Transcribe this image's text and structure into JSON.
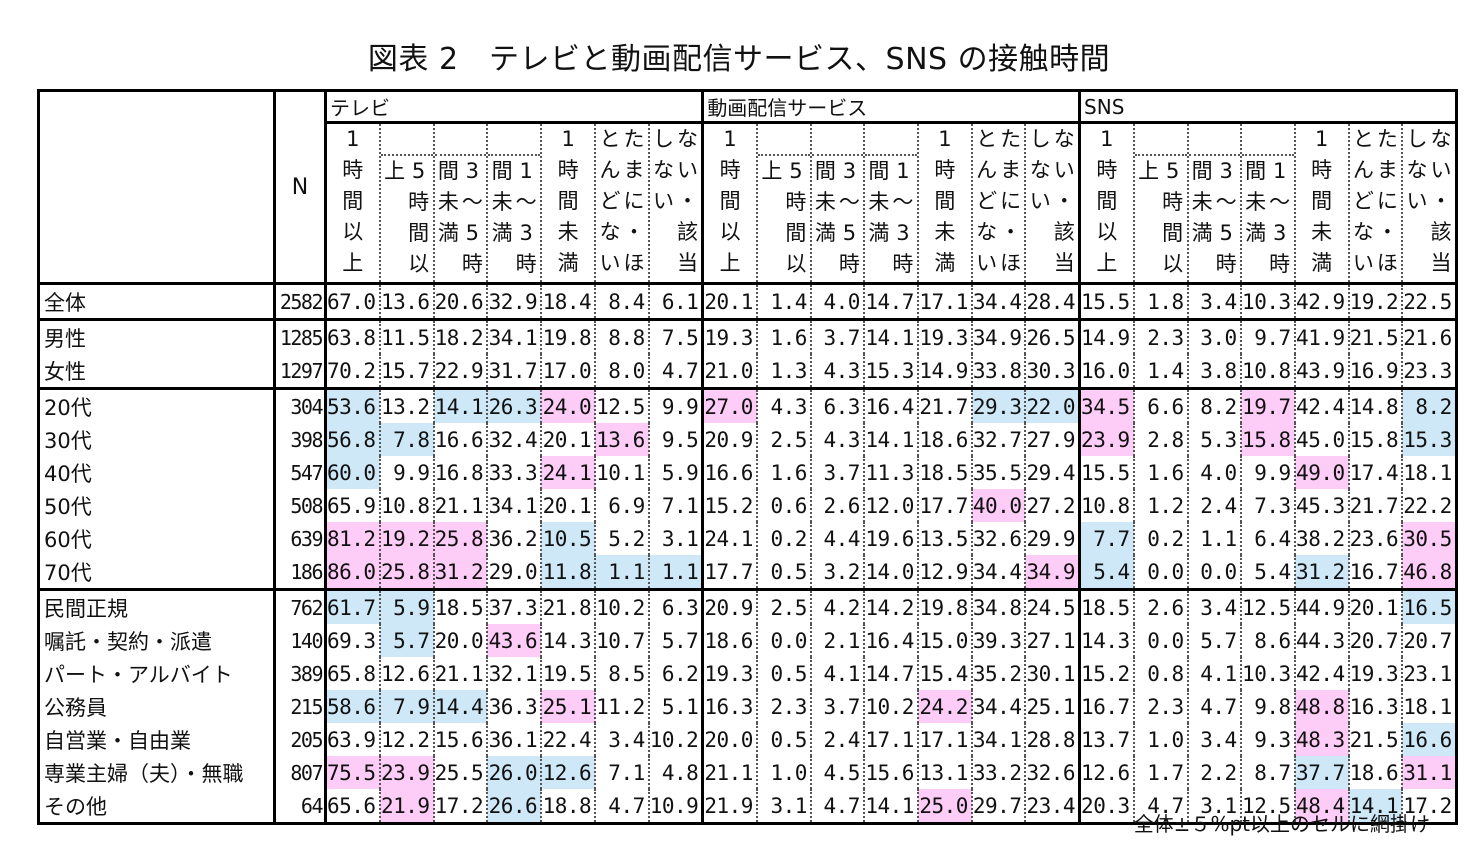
{
  "title": "図表 2　テレビと動画配信サービス、SNS の接触時間",
  "table": {
    "n_header": "N",
    "groups": [
      {
        "name": "テレビ"
      },
      {
        "name": "動画配信サービス"
      },
      {
        "name": "SNS"
      }
    ],
    "subcolumns": [
      {
        "key": "over1h",
        "label": "1時間以上"
      },
      {
        "key": "over5h",
        "label": "5時間以上"
      },
      {
        "key": "3to5h",
        "label": "3～5時間未満"
      },
      {
        "key": "1to3h",
        "label": "1～3時間未満"
      },
      {
        "key": "under1h",
        "label": "1時間未満"
      },
      {
        "key": "rarely",
        "label": "たまに・ほとんどない"
      },
      {
        "key": "none",
        "label": "しない・該当ない"
      }
    ],
    "highlight_colors": {
      "above": "#fdccf7",
      "below": "#cfe8f8"
    },
    "rows": [
      {
        "label": "全体",
        "n": "2582",
        "group": 0,
        "values": [
          "67.0",
          "13.6",
          "20.6",
          "32.9",
          "18.4",
          "8.4",
          "6.1",
          "20.1",
          "1.4",
          "4.0",
          "14.7",
          "17.1",
          "34.4",
          "28.4",
          "15.5",
          "1.8",
          "3.4",
          "10.3",
          "42.9",
          "19.2",
          "22.5"
        ],
        "hl": [
          "",
          "",
          "",
          "",
          "",
          "",
          "",
          "",
          "",
          "",
          "",
          "",
          "",
          "",
          "",
          "",
          "",
          "",
          "",
          "",
          ""
        ]
      },
      {
        "label": "男性",
        "n": "1285",
        "group": 1,
        "values": [
          "63.8",
          "11.5",
          "18.2",
          "34.1",
          "19.8",
          "8.8",
          "7.5",
          "19.3",
          "1.6",
          "3.7",
          "14.1",
          "19.3",
          "34.9",
          "26.5",
          "14.9",
          "2.3",
          "3.0",
          "9.7",
          "41.9",
          "21.5",
          "21.6"
        ],
        "hl": [
          "",
          "",
          "",
          "",
          "",
          "",
          "",
          "",
          "",
          "",
          "",
          "",
          "",
          "",
          "",
          "",
          "",
          "",
          "",
          "",
          ""
        ]
      },
      {
        "label": "女性",
        "n": "1297",
        "group": 1,
        "values": [
          "70.2",
          "15.7",
          "22.9",
          "31.7",
          "17.0",
          "8.0",
          "4.7",
          "21.0",
          "1.3",
          "4.3",
          "15.3",
          "14.9",
          "33.8",
          "30.3",
          "16.0",
          "1.4",
          "3.8",
          "10.8",
          "43.9",
          "16.9",
          "23.3"
        ],
        "hl": [
          "",
          "",
          "",
          "",
          "",
          "",
          "",
          "",
          "",
          "",
          "",
          "",
          "",
          "",
          "",
          "",
          "",
          "",
          "",
          "",
          ""
        ]
      },
      {
        "label": "20代",
        "n": "304",
        "group": 2,
        "values": [
          "53.6",
          "13.2",
          "14.1",
          "26.3",
          "24.0",
          "12.5",
          "9.9",
          "27.0",
          "4.3",
          "6.3",
          "16.4",
          "21.7",
          "29.3",
          "22.0",
          "34.5",
          "6.6",
          "8.2",
          "19.7",
          "42.4",
          "14.8",
          "8.2"
        ],
        "hl": [
          "b",
          "",
          "b",
          "b",
          "p",
          "",
          "",
          "p",
          "",
          "",
          "",
          "",
          "b",
          "b",
          "p",
          "",
          "",
          "p",
          "",
          "",
          "b"
        ]
      },
      {
        "label": "30代",
        "n": "398",
        "group": 2,
        "values": [
          "56.8",
          "7.8",
          "16.6",
          "32.4",
          "20.1",
          "13.6",
          "9.5",
          "20.9",
          "2.5",
          "4.3",
          "14.1",
          "18.6",
          "32.7",
          "27.9",
          "23.9",
          "2.8",
          "5.3",
          "15.8",
          "45.0",
          "15.8",
          "15.3"
        ],
        "hl": [
          "b",
          "b",
          "",
          "",
          "",
          "p",
          "",
          "",
          "",
          "",
          "",
          "",
          "",
          "",
          "p",
          "",
          "",
          "p",
          "",
          "",
          "b"
        ]
      },
      {
        "label": "40代",
        "n": "547",
        "group": 2,
        "values": [
          "60.0",
          "9.9",
          "16.8",
          "33.3",
          "24.1",
          "10.1",
          "5.9",
          "16.6",
          "1.6",
          "3.7",
          "11.3",
          "18.5",
          "35.5",
          "29.4",
          "15.5",
          "1.6",
          "4.0",
          "9.9",
          "49.0",
          "17.4",
          "18.1"
        ],
        "hl": [
          "b",
          "",
          "",
          "",
          "p",
          "",
          "",
          "",
          "",
          "",
          "",
          "",
          "",
          "",
          "",
          "",
          "",
          "",
          "p",
          "",
          ""
        ]
      },
      {
        "label": "50代",
        "n": "508",
        "group": 2,
        "values": [
          "65.9",
          "10.8",
          "21.1",
          "34.1",
          "20.1",
          "6.9",
          "7.1",
          "15.2",
          "0.6",
          "2.6",
          "12.0",
          "17.7",
          "40.0",
          "27.2",
          "10.8",
          "1.2",
          "2.4",
          "7.3",
          "45.3",
          "21.7",
          "22.2"
        ],
        "hl": [
          "",
          "",
          "",
          "",
          "",
          "",
          "",
          "",
          "",
          "",
          "",
          "",
          "p",
          "",
          "",
          "",
          "",
          "",
          "",
          "",
          ""
        ]
      },
      {
        "label": "60代",
        "n": "639",
        "group": 2,
        "values": [
          "81.2",
          "19.2",
          "25.8",
          "36.2",
          "10.5",
          "5.2",
          "3.1",
          "24.1",
          "0.2",
          "4.4",
          "19.6",
          "13.5",
          "32.6",
          "29.9",
          "7.7",
          "0.2",
          "1.1",
          "6.4",
          "38.2",
          "23.6",
          "30.5"
        ],
        "hl": [
          "p",
          "p",
          "p",
          "",
          "b",
          "",
          "",
          "",
          "",
          "",
          "",
          "",
          "",
          "",
          "b",
          "",
          "",
          "",
          "",
          "",
          "p"
        ]
      },
      {
        "label": "70代",
        "n": "186",
        "group": 2,
        "values": [
          "86.0",
          "25.8",
          "31.2",
          "29.0",
          "11.8",
          "1.1",
          "1.1",
          "17.7",
          "0.5",
          "3.2",
          "14.0",
          "12.9",
          "34.4",
          "34.9",
          "5.4",
          "0.0",
          "0.0",
          "5.4",
          "31.2",
          "16.7",
          "46.8"
        ],
        "hl": [
          "p",
          "p",
          "p",
          "",
          "b",
          "b",
          "b",
          "",
          "",
          "",
          "",
          "",
          "",
          "p",
          "b",
          "",
          "",
          "",
          "b",
          "",
          "p"
        ]
      },
      {
        "label": "民間正規",
        "n": "762",
        "group": 3,
        "values": [
          "61.7",
          "5.9",
          "18.5",
          "37.3",
          "21.8",
          "10.2",
          "6.3",
          "20.9",
          "2.5",
          "4.2",
          "14.2",
          "19.8",
          "34.8",
          "24.5",
          "18.5",
          "2.6",
          "3.4",
          "12.5",
          "44.9",
          "20.1",
          "16.5"
        ],
        "hl": [
          "b",
          "b",
          "",
          "",
          "",
          "",
          "",
          "",
          "",
          "",
          "",
          "",
          "",
          "",
          "",
          "",
          "",
          "",
          "",
          "",
          "b"
        ]
      },
      {
        "label": "嘱託・契約・派遣",
        "n": "140",
        "group": 3,
        "values": [
          "69.3",
          "5.7",
          "20.0",
          "43.6",
          "14.3",
          "10.7",
          "5.7",
          "18.6",
          "0.0",
          "2.1",
          "16.4",
          "15.0",
          "39.3",
          "27.1",
          "14.3",
          "0.0",
          "5.7",
          "8.6",
          "44.3",
          "20.7",
          "20.7"
        ],
        "hl": [
          "",
          "b",
          "",
          "p",
          "",
          "",
          "",
          "",
          "",
          "",
          "",
          "",
          "",
          "",
          "",
          "",
          "",
          "",
          "",
          "",
          ""
        ]
      },
      {
        "label": "パート・アルバイト",
        "n": "389",
        "group": 3,
        "values": [
          "65.8",
          "12.6",
          "21.1",
          "32.1",
          "19.5",
          "8.5",
          "6.2",
          "19.3",
          "0.5",
          "4.1",
          "14.7",
          "15.4",
          "35.2",
          "30.1",
          "15.2",
          "0.8",
          "4.1",
          "10.3",
          "42.4",
          "19.3",
          "23.1"
        ],
        "hl": [
          "",
          "",
          "",
          "",
          "",
          "",
          "",
          "",
          "",
          "",
          "",
          "",
          "",
          "",
          "",
          "",
          "",
          "",
          "",
          "",
          ""
        ]
      },
      {
        "label": "公務員",
        "n": "215",
        "group": 3,
        "values": [
          "58.6",
          "7.9",
          "14.4",
          "36.3",
          "25.1",
          "11.2",
          "5.1",
          "16.3",
          "2.3",
          "3.7",
          "10.2",
          "24.2",
          "34.4",
          "25.1",
          "16.7",
          "2.3",
          "4.7",
          "9.8",
          "48.8",
          "16.3",
          "18.1"
        ],
        "hl": [
          "b",
          "b",
          "b",
          "",
          "p",
          "",
          "",
          "",
          "",
          "",
          "",
          "p",
          "",
          "",
          "",
          "",
          "",
          "",
          "p",
          "",
          ""
        ]
      },
      {
        "label": "自営業・自由業",
        "n": "205",
        "group": 3,
        "values": [
          "63.9",
          "12.2",
          "15.6",
          "36.1",
          "22.4",
          "3.4",
          "10.2",
          "20.0",
          "0.5",
          "2.4",
          "17.1",
          "17.1",
          "34.1",
          "28.8",
          "13.7",
          "1.0",
          "3.4",
          "9.3",
          "48.3",
          "21.5",
          "16.6"
        ],
        "hl": [
          "",
          "",
          "",
          "",
          "",
          "",
          "",
          "",
          "",
          "",
          "",
          "",
          "",
          "",
          "",
          "",
          "",
          "",
          "p",
          "",
          "b"
        ]
      },
      {
        "label": "専業主婦（夫）・無職",
        "n": "807",
        "group": 3,
        "values": [
          "75.5",
          "23.9",
          "25.5",
          "26.0",
          "12.6",
          "7.1",
          "4.8",
          "21.1",
          "1.0",
          "4.5",
          "15.6",
          "13.1",
          "33.2",
          "32.6",
          "12.6",
          "1.7",
          "2.2",
          "8.7",
          "37.7",
          "18.6",
          "31.1"
        ],
        "hl": [
          "p",
          "p",
          "",
          "b",
          "b",
          "",
          "",
          "",
          "",
          "",
          "",
          "",
          "",
          "",
          "",
          "",
          "",
          "",
          "b",
          "",
          "p"
        ]
      },
      {
        "label": "その他",
        "n": "64",
        "group": 3,
        "values": [
          "65.6",
          "21.9",
          "17.2",
          "26.6",
          "18.8",
          "4.7",
          "10.9",
          "21.9",
          "3.1",
          "4.7",
          "14.1",
          "25.0",
          "29.7",
          "23.4",
          "20.3",
          "4.7",
          "3.1",
          "12.5",
          "48.4",
          "14.1",
          "17.2"
        ],
        "hl": [
          "",
          "p",
          "",
          "b",
          "",
          "",
          "",
          "",
          "",
          "",
          "",
          "p",
          "",
          "",
          "",
          "",
          "",
          "",
          "p",
          "b",
          ""
        ]
      }
    ]
  },
  "footnote": "全体±５%pt以上のセルに網掛け"
}
